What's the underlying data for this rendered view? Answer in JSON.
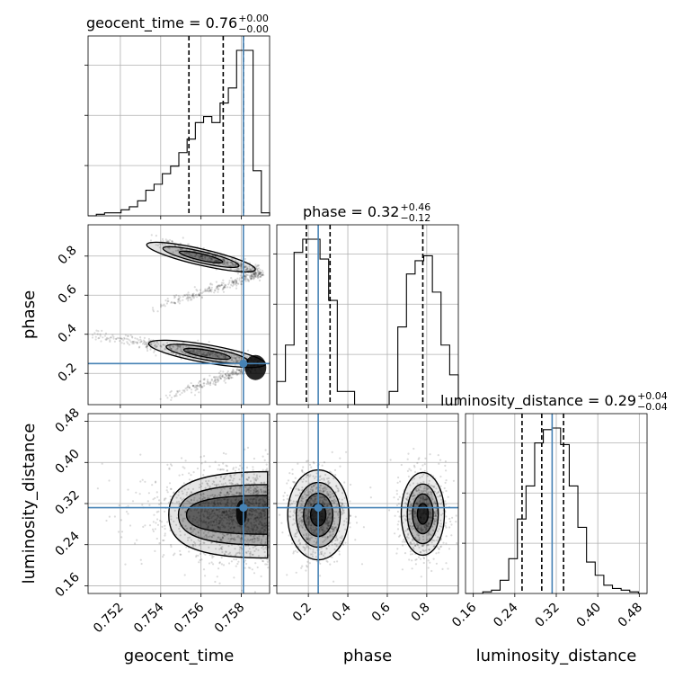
{
  "chart_data": {
    "type": "corner",
    "parameters": [
      "geocent_time",
      "phase",
      "luminosity_distance"
    ],
    "truths": {
      "geocent_time": 0.7581,
      "phase": 0.25,
      "luminosity_distance": 0.312
    },
    "ranges": {
      "geocent_time": [
        0.7504,
        0.7594
      ],
      "phase": [
        0.04,
        0.96
      ],
      "luminosity_distance": [
        0.145,
        0.495
      ]
    },
    "ticks": {
      "geocent_time": [
        "0.752",
        "0.754",
        "0.756",
        "0.758"
      ],
      "phase": [
        "0.2",
        "0.4",
        "0.6",
        "0.8"
      ],
      "luminosity_distance": [
        "0.16",
        "0.24",
        "0.32",
        "0.40",
        "0.48"
      ]
    },
    "axis_labels": {
      "x_bottom": [
        "geocent_time",
        "phase",
        "luminosity_distance"
      ],
      "y_left": [
        "phase",
        "luminosity_distance"
      ]
    },
    "titles": [
      {
        "param": "geocent_time",
        "main": "geocent_time = 0.76",
        "sup": "+0.00",
        "sub": "−0.00"
      },
      {
        "param": "phase",
        "main": "phase = 0.32",
        "sup": "+0.46",
        "sub": "−0.12"
      },
      {
        "param": "luminosity_distance",
        "main": "luminosity_distance = 0.29",
        "sup": "+0.04",
        "sub": "−0.04"
      }
    ],
    "quantiles": {
      "geocent_time": [
        0.7554,
        0.7571,
        0.7581
      ],
      "phase": [
        0.19,
        0.31,
        0.78
      ],
      "luminosity_distance": [
        0.254,
        0.292,
        0.334
      ]
    },
    "histograms": {
      "geocent_time": {
        "edges_range": [
          0.7504,
          0.7594
        ],
        "counts": [
          0,
          1,
          2,
          2,
          4,
          6,
          10,
          17,
          21,
          28,
          33,
          42,
          51,
          62,
          66,
          62,
          75,
          85,
          110,
          110,
          30,
          2
        ]
      },
      "phase": {
        "edges_range": [
          0.04,
          0.96
        ],
        "counts": [
          14,
          36,
          92,
          100,
          100,
          88,
          63,
          8,
          8,
          0,
          0,
          0,
          0,
          8,
          47,
          79,
          87,
          90,
          68,
          36,
          18
        ]
      },
      "luminosity_distance": {
        "edges_range": [
          0.145,
          0.495
        ],
        "counts": [
          0,
          0,
          1,
          2,
          8,
          21,
          45,
          65,
          91,
          99,
          100,
          90,
          65,
          40,
          19,
          11,
          5,
          3,
          2,
          1,
          0
        ]
      }
    },
    "grid": true,
    "accent_colors": {
      "truth": "#4682b4",
      "contour": "#000000",
      "grid": "#b0b0b0"
    }
  }
}
